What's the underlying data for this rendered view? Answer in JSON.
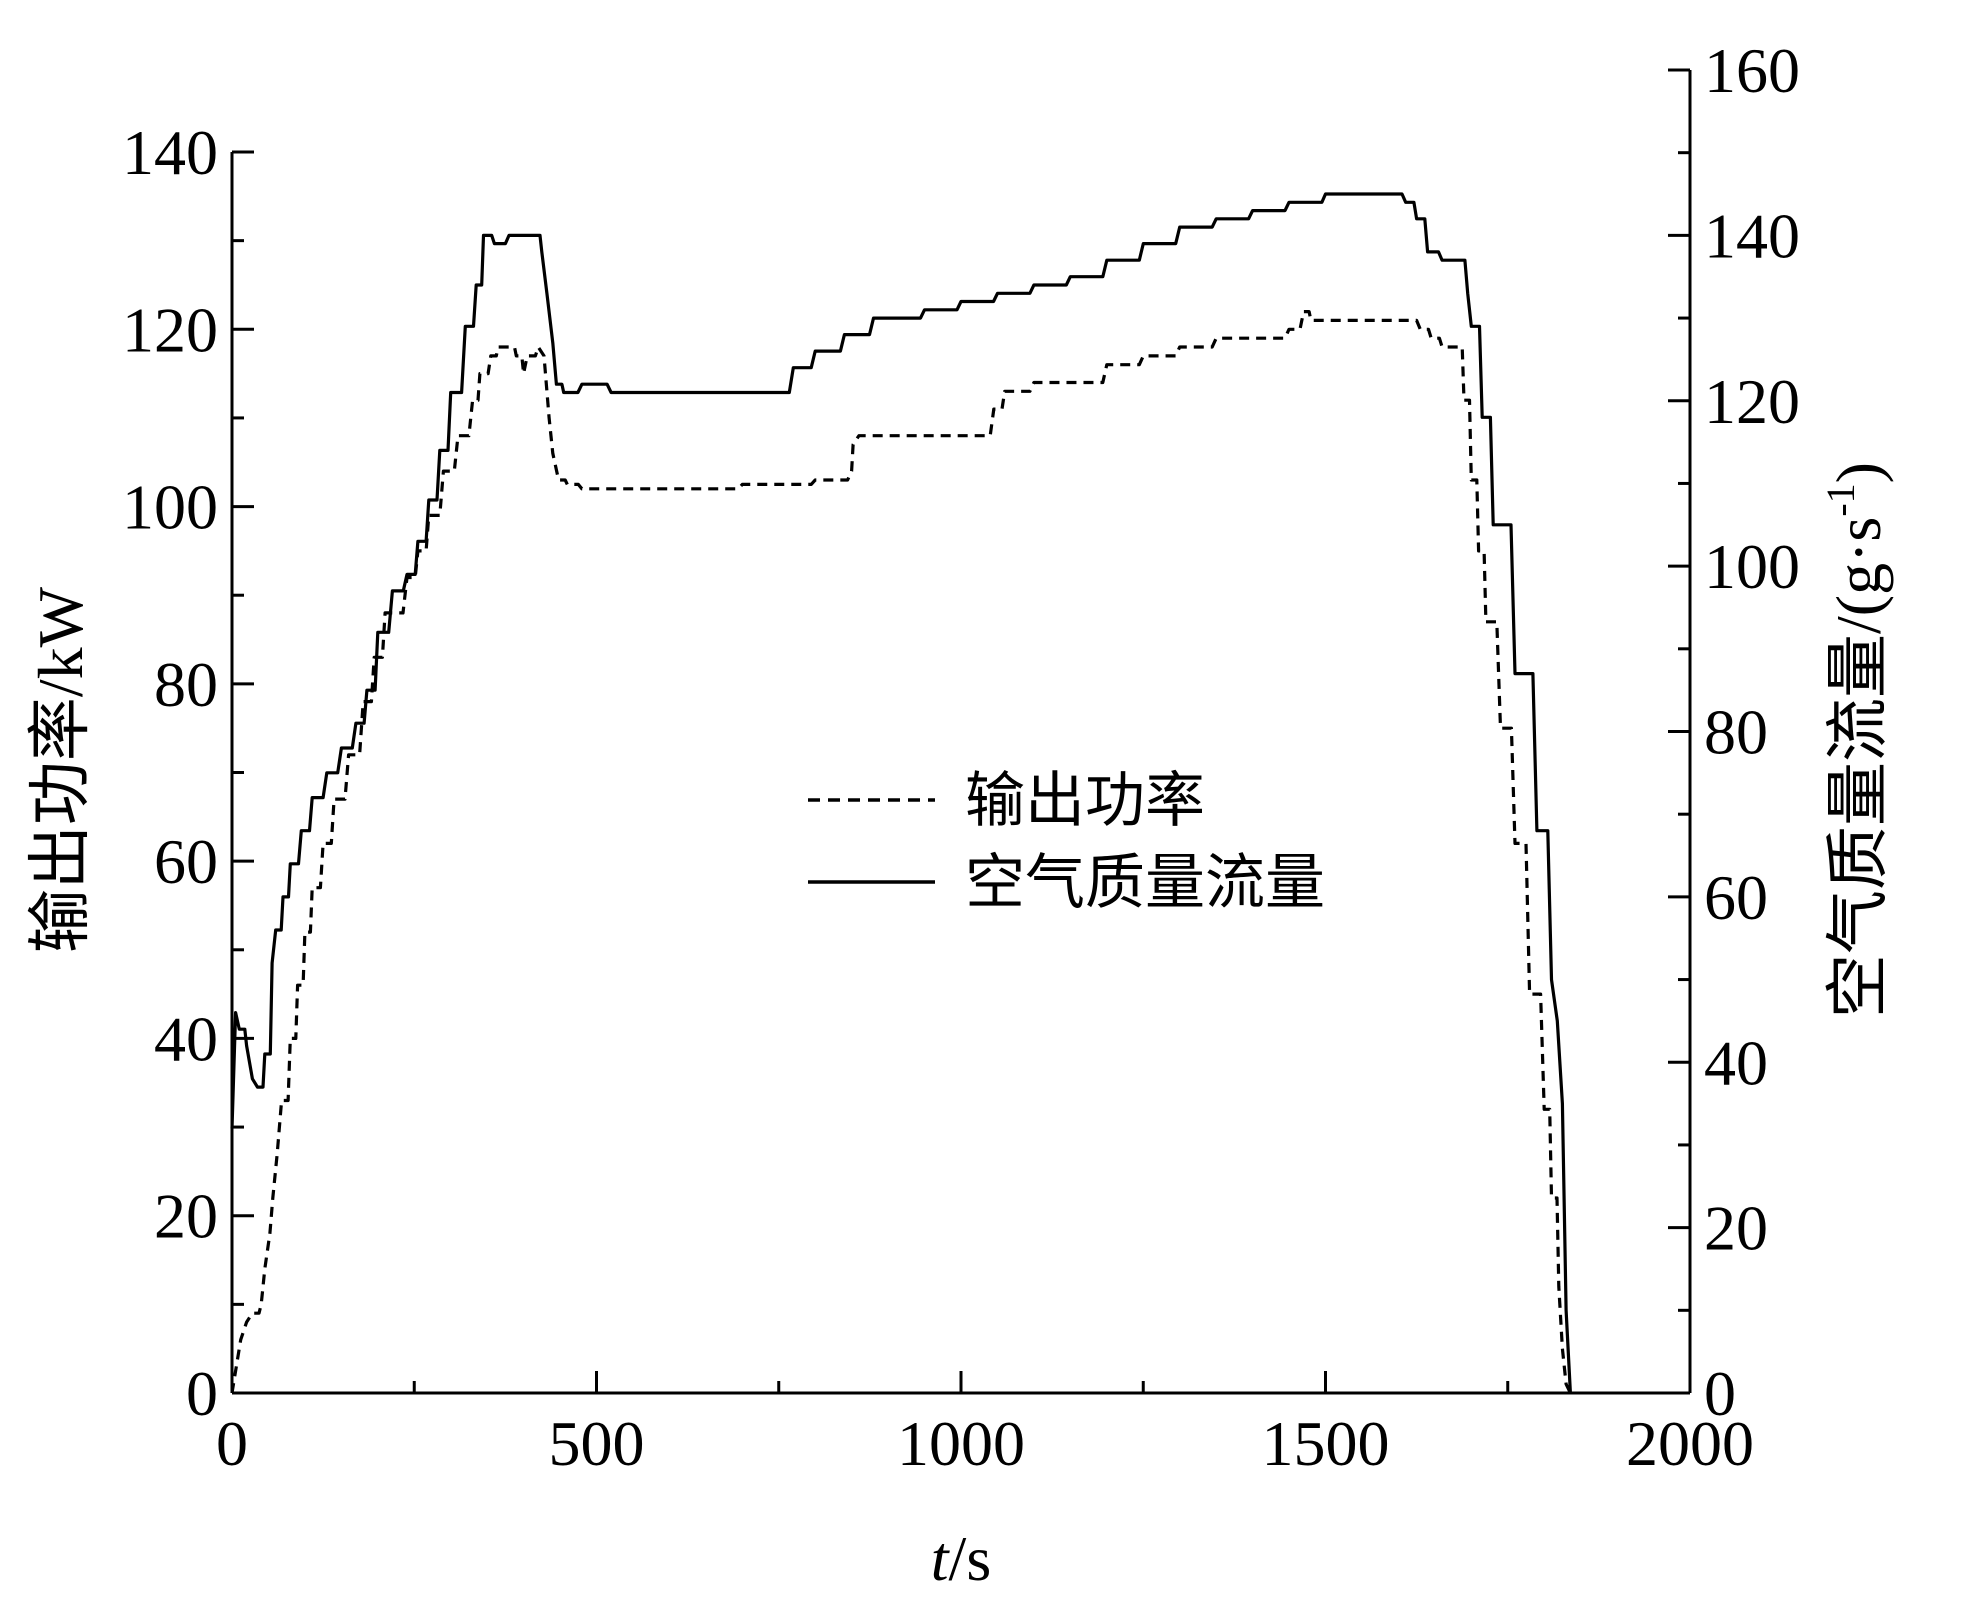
{
  "chart_data": {
    "type": "line",
    "xlabel": "t/s",
    "xlabel_italic": "t",
    "xlabel_rest": "/s",
    "ylabel_left": "输出功率/kW",
    "ylabel_right": "空气质量流量/(g·s",
    "ylabel_right_sup": "-1",
    "ylabel_right_close": ")",
    "xlim": [
      0,
      2000
    ],
    "ylim_left": [
      0,
      140
    ],
    "ylim_right": [
      0,
      160
    ],
    "x_ticks": [
      "0",
      "500",
      "1000",
      "1500",
      "2000"
    ],
    "y_left_ticks": [
      "0",
      "20",
      "40",
      "60",
      "80",
      "100",
      "120",
      "140"
    ],
    "y_right_ticks": [
      "0",
      "20",
      "40",
      "60",
      "80",
      "100",
      "120",
      "140",
      "160"
    ],
    "grid": false,
    "legend_position": "center",
    "legend": [
      {
        "label": "输出功率",
        "style": "dashed"
      },
      {
        "label": "空气质量流量",
        "style": "solid"
      }
    ],
    "series": [
      {
        "name": "输出功率",
        "axis": "left",
        "style": "dashed",
        "color": "#000000",
        "x": [
          0,
          8,
          12,
          20,
          28,
          40,
          45,
          52,
          56,
          62,
          68,
          80,
          90,
          100,
          110,
          125,
          140,
          160,
          180,
          195,
          210,
          240,
          255,
          270,
          290,
          310,
          330,
          340,
          355,
          365,
          380,
          390,
          400,
          405,
          420,
          428,
          435,
          440,
          448,
          460,
          480,
          520,
          600,
          700,
          760,
          800,
          850,
          852,
          860,
          900,
          1000,
          1040,
          1045,
          1060,
          1100,
          1150,
          1200,
          1220,
          1250,
          1300,
          1350,
          1400,
          1450,
          1470,
          1480,
          1500,
          1560,
          1610,
          1630,
          1645,
          1660,
          1680,
          1690,
          1700,
          1710,
          1720,
          1740,
          1760,
          1780,
          1800,
          1810,
          1820,
          1825,
          1830,
          1836
        ],
        "y": [
          0,
          4,
          6,
          8,
          9,
          10,
          14,
          18,
          22,
          27,
          33,
          40,
          46,
          52,
          57,
          62,
          67,
          72,
          78,
          83,
          88,
          92,
          95,
          99,
          104,
          108,
          112,
          115,
          117,
          118,
          118,
          117,
          115,
          117,
          118,
          117,
          110,
          106,
          103,
          102.5,
          102,
          102,
          102,
          102.5,
          102.5,
          103,
          104,
          107,
          108,
          108,
          108,
          108,
          111,
          113,
          114,
          114,
          116,
          116,
          117,
          118,
          119,
          119,
          120,
          122,
          121,
          121,
          121,
          121,
          120,
          119,
          118,
          118,
          112,
          103,
          95,
          87,
          75,
          62,
          45,
          32,
          22,
          12,
          5,
          1,
          0
        ]
      },
      {
        "name": "空气质量流量",
        "axis": "right",
        "style": "solid",
        "color": "#000000",
        "x": [
          0,
          5,
          10,
          20,
          28,
          35,
          45,
          55,
          60,
          70,
          80,
          95,
          110,
          130,
          150,
          170,
          185,
          200,
          220,
          240,
          255,
          270,
          285,
          300,
          320,
          335,
          345,
          360,
          380,
          400,
          415,
          425,
          432,
          440,
          445,
          455,
          480,
          520,
          600,
          700,
          740,
          770,
          800,
          840,
          880,
          950,
          1000,
          1050,
          1100,
          1150,
          1200,
          1250,
          1300,
          1350,
          1400,
          1450,
          1480,
          1500,
          1550,
          1590,
          1610,
          1625,
          1640,
          1660,
          1680,
          1695,
          1700,
          1715,
          1730,
          1760,
          1790,
          1810,
          1818,
          1825,
          1830,
          1836
        ],
        "y": [
          32,
          46,
          44,
          42,
          38,
          37,
          41,
          52,
          56,
          60,
          64,
          68,
          72,
          75,
          78,
          81,
          85,
          92,
          97,
          99,
          103,
          108,
          114,
          121,
          129,
          134,
          140,
          139,
          140,
          140,
          140,
          138,
          133,
          127,
          122,
          121,
          122,
          121,
          121,
          121,
          121,
          124,
          126,
          128,
          130,
          131,
          132,
          133,
          134,
          135,
          137,
          139,
          141,
          142,
          143,
          144,
          144,
          145,
          145,
          145,
          144,
          142,
          138,
          137,
          137,
          133,
          129,
          118,
          105,
          87,
          68,
          50,
          45,
          35,
          10,
          0
        ]
      }
    ]
  }
}
